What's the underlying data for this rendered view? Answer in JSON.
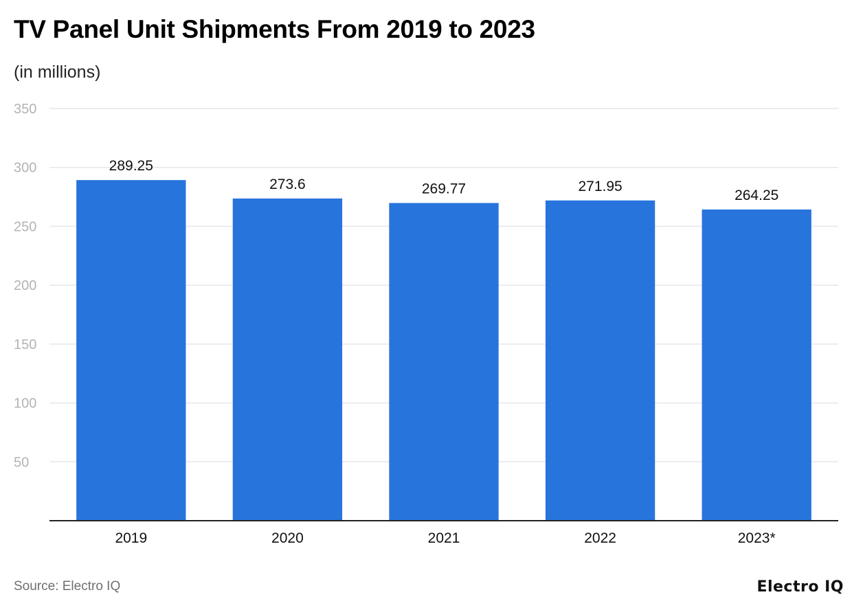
{
  "chart_data": {
    "type": "bar",
    "title": "TV Panel Unit Shipments From 2019 to 2023",
    "subtitle": "(in millions)",
    "categories": [
      "2019",
      "2020",
      "2021",
      "2022",
      "2023*"
    ],
    "values": [
      289.25,
      273.6,
      269.77,
      271.95,
      264.25
    ],
    "value_labels": [
      "289.25",
      "273.6",
      "269.77",
      "271.95",
      "264.25"
    ],
    "ylim": [
      0,
      350
    ],
    "yticks": [
      50,
      100,
      150,
      200,
      250,
      300,
      350
    ],
    "xlabel": "",
    "ylabel": "",
    "grid": true,
    "bar_color": "#2874dd",
    "grid_color": "#e6e6e6",
    "axis_color": "#222222"
  },
  "source": "Source: Electro IQ",
  "brand": "Electro IQ"
}
